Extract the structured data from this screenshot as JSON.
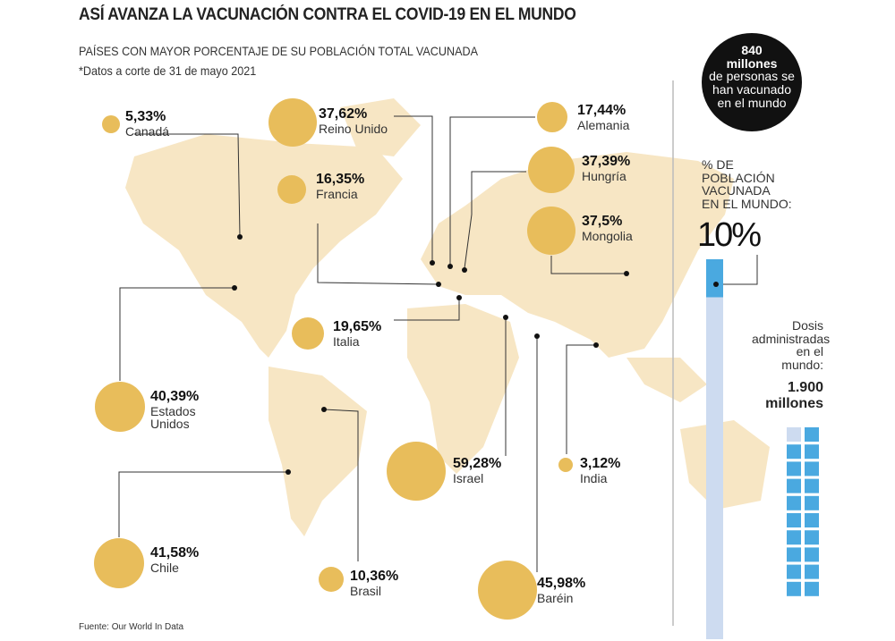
{
  "title": "ASÍ AVANZA LA VACUNACIÓN CONTRA EL COVID-19 EN EL MUNDO",
  "subtitle": "PAÍSES CON MAYOR PORCENTAJE DE SU POBLACIÓN TOTAL VACUNADA",
  "note": "*Datos a corte de 31 de mayo 2021",
  "source": "Fuente: Our World In Data",
  "colors": {
    "bubble": "#e8bd5b",
    "land": "#f7e6c4",
    "bar_fill": "#4aa9e0",
    "bar_bg": "#cddbf0",
    "badge": "#111111"
  },
  "countries": [
    {
      "name": "Canadá",
      "pct": "5,33%",
      "value": 5.33
    },
    {
      "name": "Reino Unido",
      "pct": "37,62%",
      "value": 37.62
    },
    {
      "name": "Alemania",
      "pct": "17,44%",
      "value": 17.44
    },
    {
      "name": "Francia",
      "pct": "16,35%",
      "value": 16.35
    },
    {
      "name": "Hungría",
      "pct": "37,39%",
      "value": 37.39
    },
    {
      "name": "Mongolia",
      "pct": "37,5%",
      "value": 37.5
    },
    {
      "name": "Estados Unidos",
      "name_line1": "Estados",
      "name_line2": "Unidos",
      "pct": "40,39%",
      "value": 40.39
    },
    {
      "name": "Italia",
      "pct": "19,65%",
      "value": 19.65
    },
    {
      "name": "Israel",
      "pct": "59,28%",
      "value": 59.28
    },
    {
      "name": "India",
      "pct": "3,12%",
      "value": 3.12
    },
    {
      "name": "Chile",
      "pct": "41,58%",
      "value": 41.58
    },
    {
      "name": "Brasil",
      "pct": "10,36%",
      "value": 10.36
    },
    {
      "name": "Baréin",
      "pct": "45,98%",
      "value": 45.98
    }
  ],
  "badge": {
    "number": "840",
    "unit": "millones",
    "line1": "de personas se",
    "line2": "han vacunado",
    "line3": "en el mundo"
  },
  "world_pct": {
    "label_l1": "% DE",
    "label_l2": "POBLACIÓN",
    "label_l3": "VACUNADA",
    "label_l4": "EN EL MUNDO:",
    "value_text": "10%",
    "value": 10
  },
  "doses": {
    "label_l1": "Dosis",
    "label_l2": "administradas",
    "label_l3": "en el mundo:",
    "value_l1": "1.900",
    "value_l2": "millones",
    "blocks_filled": 19,
    "blocks_total": 20
  }
}
